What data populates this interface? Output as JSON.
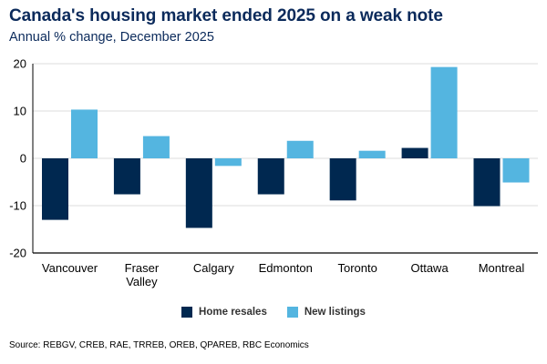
{
  "header": {
    "title": "Canada's housing market ended 2025 on a weak note",
    "subtitle": "Annual % change, December 2025"
  },
  "footer": {
    "source": "Source: REBGV, CREB, RAE, TRREB, OREB, QPAREB, RBC Economics"
  },
  "colors": {
    "home_resales": "#002850",
    "new_listings": "#54b5e0",
    "title": "#0b2a5b",
    "gridline": "#e3e3e3",
    "axis": "#000000"
  },
  "chart_data": {
    "type": "bar",
    "title": "Canada's housing market ended 2025 on a weak note",
    "subtitle": "Annual % change, December 2025",
    "xlabel": "",
    "ylabel": "",
    "ylim": [
      -20,
      20
    ],
    "yticks": [
      20,
      10,
      0,
      -10,
      -20
    ],
    "grid": true,
    "legend_position": "bottom-center",
    "categories": [
      [
        "Vancouver"
      ],
      [
        "Fraser",
        "Valley"
      ],
      [
        "Calgary"
      ],
      [
        "Edmonton"
      ],
      [
        "Toronto"
      ],
      [
        "Ottawa"
      ],
      [
        "Montreal"
      ]
    ],
    "series": [
      {
        "name": "Home resales",
        "color": "#002850",
        "values": [
          -13.0,
          -7.6,
          -14.7,
          -7.6,
          -8.9,
          2.2,
          -10.1
        ]
      },
      {
        "name": "New listings",
        "color": "#54b5e0",
        "values": [
          10.3,
          4.7,
          -1.6,
          3.7,
          1.6,
          19.3,
          -5.1
        ]
      }
    ]
  }
}
